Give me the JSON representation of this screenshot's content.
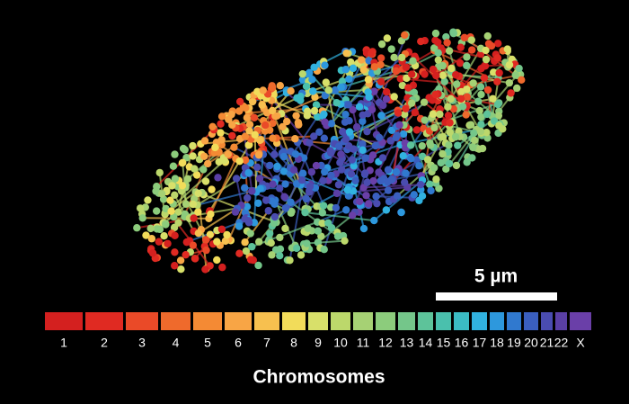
{
  "scale_bar": {
    "label": "5 µm"
  },
  "legend": {
    "title": "Chromosomes",
    "items": [
      {
        "label": "1",
        "color": "#d4201f"
      },
      {
        "label": "2",
        "color": "#e02a22"
      },
      {
        "label": "3",
        "color": "#ea4a28"
      },
      {
        "label": "4",
        "color": "#ef6a2c"
      },
      {
        "label": "5",
        "color": "#f48a34"
      },
      {
        "label": "6",
        "color": "#f8a545"
      },
      {
        "label": "7",
        "color": "#f7c04f"
      },
      {
        "label": "8",
        "color": "#f2dc5a"
      },
      {
        "label": "9",
        "color": "#d8e06a"
      },
      {
        "label": "10",
        "color": "#bcd86b"
      },
      {
        "label": "11",
        "color": "#a6d174"
      },
      {
        "label": "12",
        "color": "#8ccc7c"
      },
      {
        "label": "13",
        "color": "#74c68a"
      },
      {
        "label": "14",
        "color": "#5dc39a"
      },
      {
        "label": "15",
        "color": "#4ac0ad"
      },
      {
        "label": "16",
        "color": "#3bbcc4"
      },
      {
        "label": "17",
        "color": "#31b2e0"
      },
      {
        "label": "18",
        "color": "#2d98dd"
      },
      {
        "label": "19",
        "color": "#3079cf"
      },
      {
        "label": "20",
        "color": "#3a5fbf"
      },
      {
        "label": "21",
        "color": "#4a4cb0"
      },
      {
        "label": "22",
        "color": "#5a3fa5"
      },
      {
        "label": "X",
        "color": "#6a3fa8"
      }
    ]
  }
}
